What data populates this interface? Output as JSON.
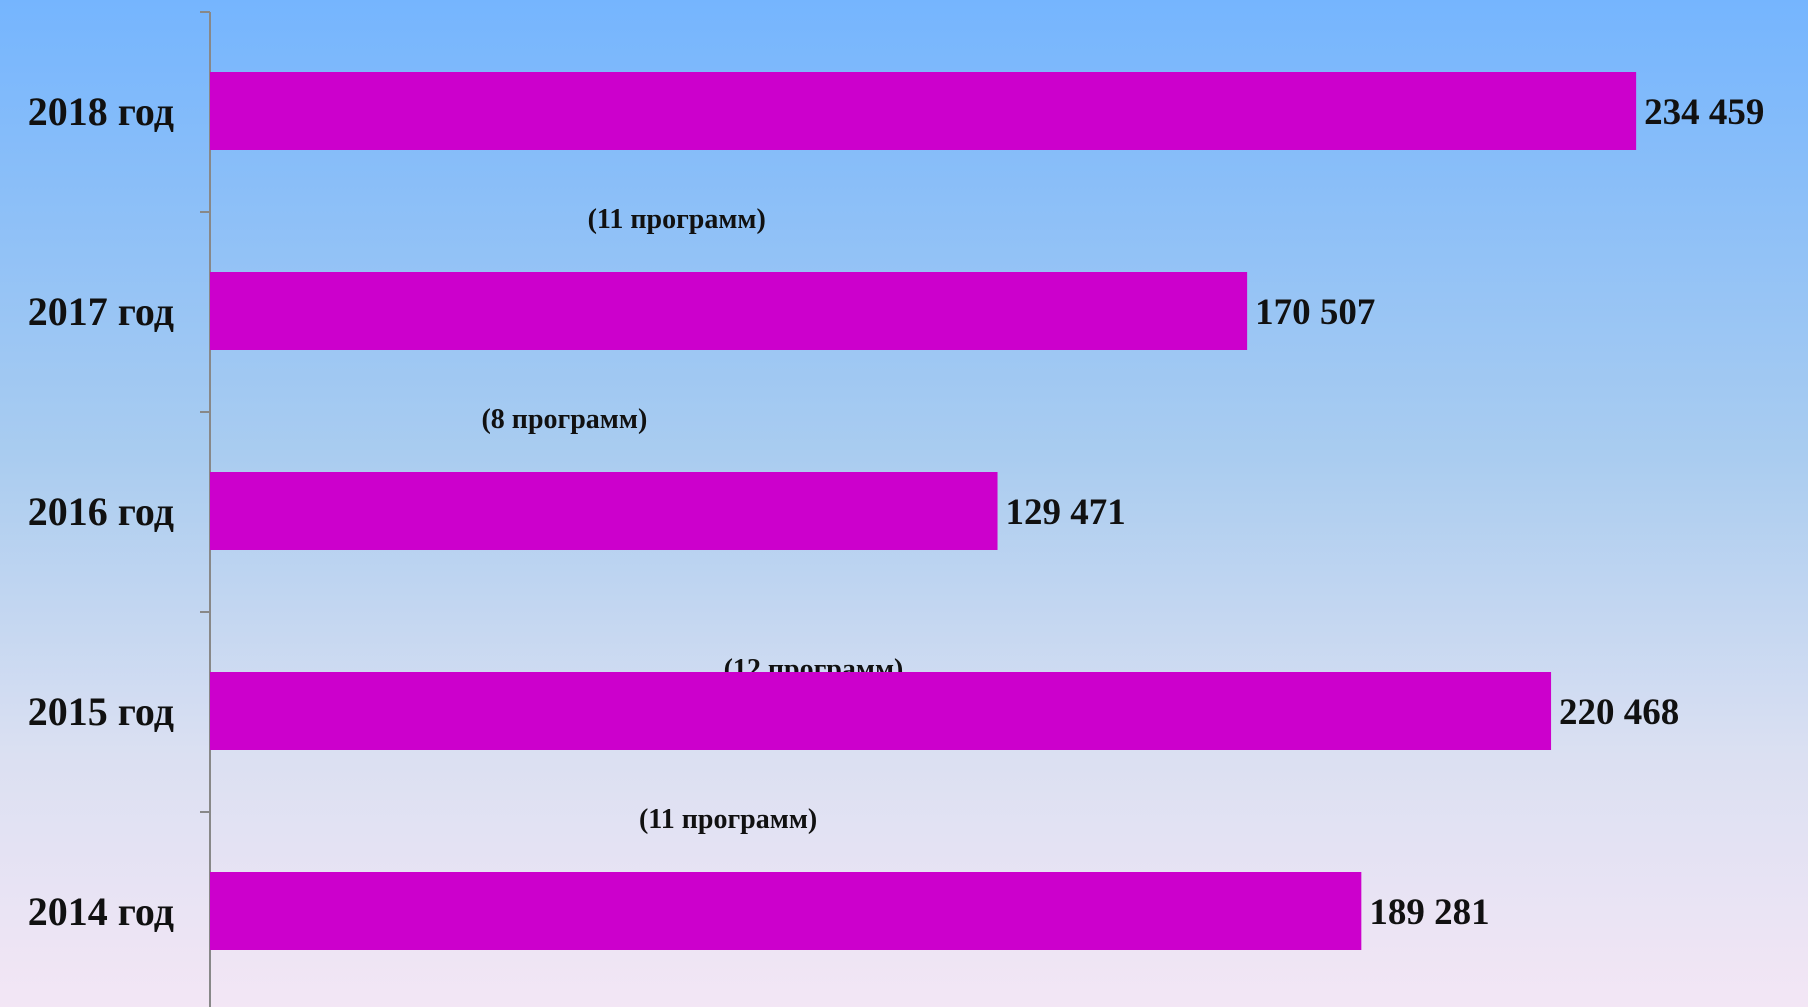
{
  "chart_data": {
    "type": "bar",
    "orientation": "horizontal",
    "categories": [
      "2018 год",
      "2017 год",
      "2016 год",
      "2015 год",
      "2014 год"
    ],
    "values": [
      234459,
      170507,
      129471,
      220468,
      189281
    ],
    "value_labels": [
      "234 459",
      "170 507",
      "129 471",
      "220 468",
      "189 281"
    ],
    "annotations": [
      "",
      "(11 программ)",
      "(8 программ)",
      "(12 программ)",
      "(11 программ)"
    ],
    "bar_color": "#cc00cc",
    "xlim": [
      0,
      242000
    ],
    "grid": false,
    "legend": "none"
  }
}
